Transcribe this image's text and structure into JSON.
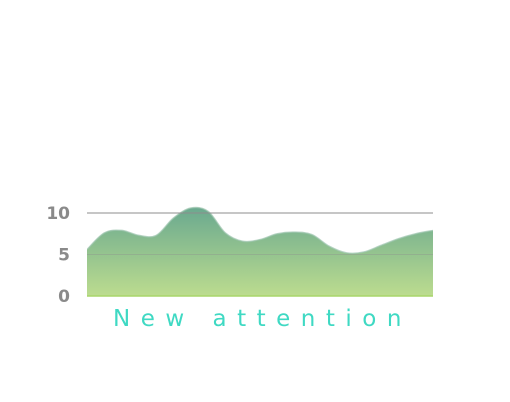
{
  "chart_data": {
    "type": "area",
    "xlabel": "New attention",
    "ylabel": "",
    "title": "",
    "ylim": [
      0,
      10
    ],
    "y_ticks": [
      0,
      5,
      10
    ],
    "grid": true,
    "x": [
      0,
      1,
      2,
      3,
      4,
      5,
      6,
      7,
      8,
      9,
      10,
      11,
      12,
      13,
      14,
      15,
      16,
      17,
      18,
      19,
      20
    ],
    "series": [
      {
        "values": [
          5.6,
          7.6,
          7.9,
          7.3,
          7.3,
          9.4,
          10.6,
          10.2,
          7.6,
          6.6,
          6.8,
          7.5,
          7.7,
          7.4,
          6.0,
          5.2,
          5.3,
          6.1,
          6.9,
          7.5,
          7.9
        ],
        "color_top": "#6aa98f",
        "color_bottom": "#bcdc8f"
      }
    ],
    "gridline_color": "#8d8d8d",
    "baseline_color": "#a8d66a"
  }
}
